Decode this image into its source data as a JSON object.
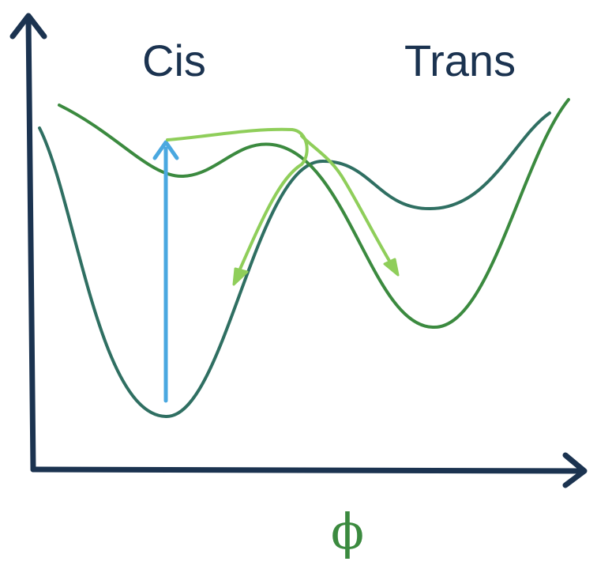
{
  "labels": {
    "left_well": "Cis",
    "right_well": "Trans",
    "x_axis": "ϕ"
  },
  "colors": {
    "axes": "#1b3350",
    "ground_state_curve": "#2f6f62",
    "excited_state_curve": "#3b8a3f",
    "excitation_arrow": "#4aa8e0",
    "relaxation_paths": "#8fce5a",
    "left_well_label": "#1b3350",
    "x_axis_label": "#3b8a3f"
  }
}
